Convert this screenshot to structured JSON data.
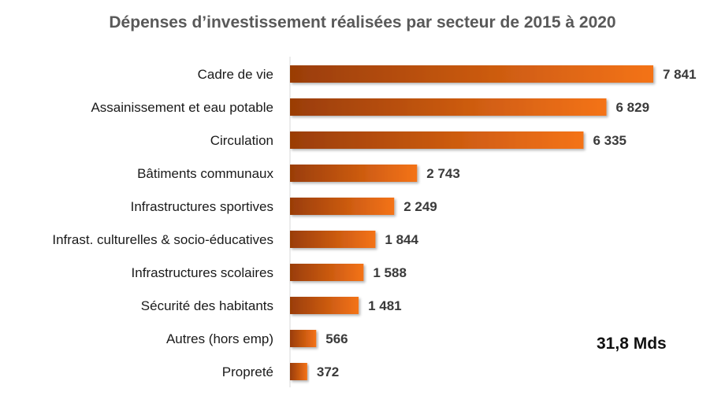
{
  "chart_data": {
    "type": "bar",
    "orientation": "horizontal",
    "title": "Dépenses d’investissement réalisées par secteur de 2015 à 2020",
    "categories": [
      "Cadre de vie",
      "Assainissement et eau potable",
      "Circulation",
      "Bâtiments communaux",
      "Infrastructures sportives",
      "Infrast. culturelles & socio-éducatives",
      "Infrastructures scolaires",
      "Sécurité des habitants",
      "Autres (hors emp)",
      "Propreté"
    ],
    "values": [
      7841,
      6829,
      6335,
      2743,
      2249,
      1844,
      1588,
      1481,
      566,
      372
    ],
    "value_labels": [
      "7 841",
      "6 829",
      "6 335",
      "2 743",
      "2 249",
      "1 844",
      "1 588",
      "1 481",
      "566",
      "372"
    ],
    "annotation": "31,8 Mds",
    "xlim": [
      0,
      8000
    ],
    "grid": false,
    "colors": {
      "bar_dark": "#9a3d06",
      "bar_light": "#f47319",
      "axis": "#d9d9d9"
    }
  }
}
